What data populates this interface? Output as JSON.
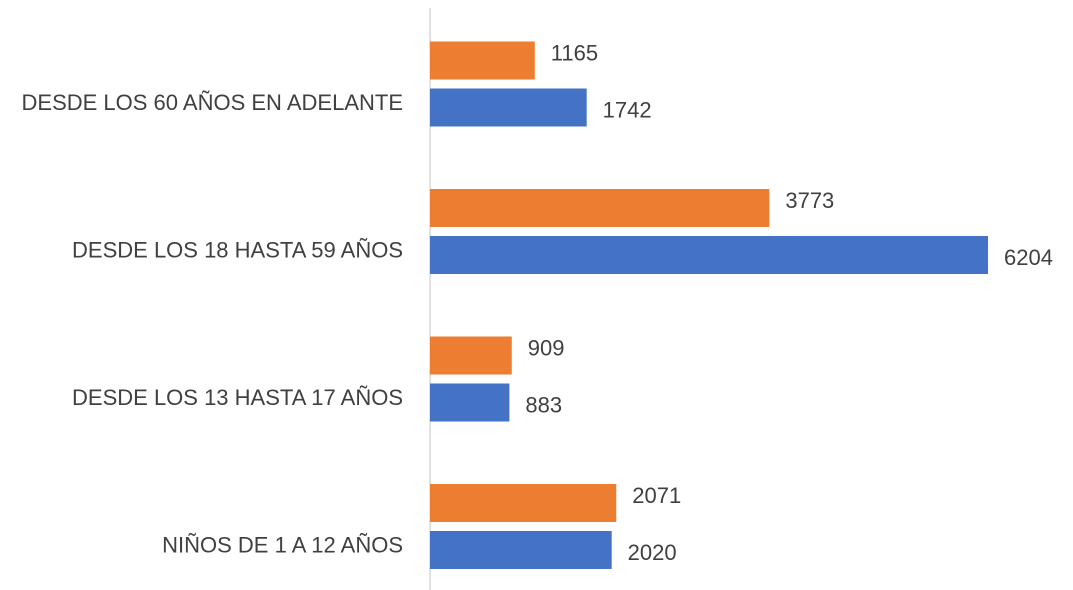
{
  "chart_data": {
    "type": "hbar",
    "categories": [
      "DESDE LOS 60 AÑOS EN ADELANTE",
      "DESDE LOS 18 HASTA 59 AÑOS",
      "DESDE LOS 13 HASTA 17 AÑOS",
      "NIÑOS DE 1 A 12 AÑOS"
    ],
    "series": [
      {
        "color": "#ed7d31",
        "values": [
          1165,
          3773,
          909,
          2071
        ]
      },
      {
        "color": "#4472c4",
        "values": [
          1742,
          6204,
          883,
          2020
        ]
      }
    ]
  }
}
